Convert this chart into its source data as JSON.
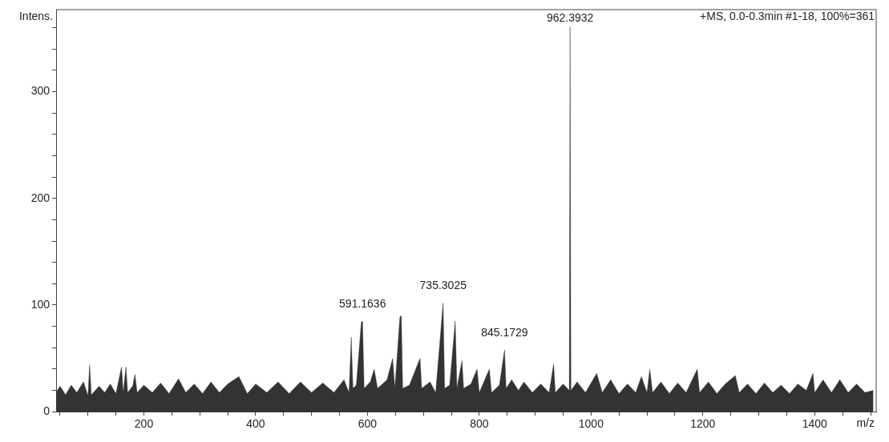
{
  "chart_data": {
    "type": "area",
    "title": "+MS, 0.0-0.3min #1-18, 100%=361",
    "xlabel": "m/z",
    "ylabel": "Intens.",
    "x": [
      43,
      50,
      60,
      70,
      80,
      92,
      100,
      103,
      106,
      120,
      130,
      140,
      150,
      160,
      163,
      168,
      171,
      180,
      184,
      188,
      200,
      215,
      230,
      245,
      262,
      275,
      290,
      305,
      320,
      335,
      350,
      370,
      385,
      400,
      420,
      440,
      460,
      480,
      500,
      520,
      540,
      558,
      567,
      571,
      574,
      580,
      589,
      591.1636,
      594,
      605,
      612,
      618,
      635,
      645,
      649,
      658,
      660.5,
      663,
      675,
      694,
      697,
      712,
      722,
      735.3025,
      738,
      747,
      757,
      760,
      769,
      772,
      785,
      796,
      800,
      818,
      822,
      836,
      845.1729,
      848,
      858,
      870,
      880,
      895,
      910,
      925,
      933,
      936,
      950,
      961,
      962.3932,
      964,
      975,
      990,
      1010,
      1020,
      1035,
      1050,
      1065,
      1080,
      1090,
      1100,
      1105,
      1110,
      1125,
      1140,
      1155,
      1170,
      1190,
      1194,
      1210,
      1225,
      1240,
      1258,
      1265,
      1280,
      1295,
      1310,
      1325,
      1340,
      1355,
      1370,
      1385,
      1397,
      1400,
      1415,
      1430,
      1445,
      1460,
      1475,
      1490,
      1505
    ],
    "series": [
      {
        "color": "#333333",
        "values": [
          18,
          24,
          16,
          25,
          18,
          28,
          15,
          44,
          16,
          24,
          18,
          26,
          17,
          42,
          18,
          42,
          18,
          24,
          35,
          18,
          25,
          18,
          27,
          17,
          31,
          18,
          26,
          17,
          28,
          18,
          26,
          33,
          17,
          26,
          18,
          28,
          17,
          28,
          18,
          27,
          18,
          30,
          18,
          70,
          22,
          25,
          84,
          85,
          22,
          28,
          40,
          22,
          30,
          50,
          22,
          89,
          90,
          22,
          25,
          50,
          22,
          28,
          18,
          102,
          22,
          25,
          85,
          22,
          48,
          22,
          26,
          40,
          18,
          40,
          18,
          25,
          58,
          22,
          30,
          20,
          28,
          18,
          26,
          18,
          45,
          18,
          26,
          20,
          361,
          20,
          28,
          18,
          36,
          18,
          30,
          17,
          26,
          18,
          33,
          18,
          40,
          18,
          28,
          17,
          27,
          18,
          40,
          18,
          28,
          17,
          26,
          34,
          18,
          26,
          17,
          27,
          18,
          25,
          17,
          26,
          20,
          36,
          18,
          30,
          18,
          30,
          18,
          26,
          18,
          20
        ]
      }
    ],
    "xlim": [
      43,
      1510
    ],
    "ylim": [
      0,
      377
    ],
    "xticks": [
      {
        "value": 50,
        "label": null
      },
      {
        "value": 100,
        "label": null
      },
      {
        "value": 150,
        "label": null
      },
      200,
      {
        "value": 250,
        "label": null
      },
      {
        "value": 300,
        "label": null
      },
      {
        "value": 350,
        "label": null
      },
      400,
      {
        "value": 450,
        "label": null
      },
      {
        "value": 500,
        "label": null
      },
      {
        "value": 550,
        "label": null
      },
      600,
      {
        "value": 650,
        "label": null
      },
      {
        "value": 700,
        "label": null
      },
      {
        "value": 750,
        "label": null
      },
      800,
      {
        "value": 850,
        "label": null
      },
      {
        "value": 900,
        "label": null
      },
      {
        "value": 950,
        "label": null
      },
      1000,
      {
        "value": 1050,
        "label": null
      },
      {
        "value": 1100,
        "label": null
      },
      {
        "value": 1150,
        "label": null
      },
      1200,
      {
        "value": 1250,
        "label": null
      },
      {
        "value": 1300,
        "label": null
      },
      {
        "value": 1350,
        "label": null
      },
      1400,
      {
        "value": 1450,
        "label": null
      },
      {
        "value": 1500,
        "label": null
      }
    ],
    "yticks": [
      0,
      {
        "value": 20,
        "label": null
      },
      {
        "value": 40,
        "label": null
      },
      {
        "value": 60,
        "label": null
      },
      {
        "value": 80,
        "label": null
      },
      100,
      {
        "value": 120,
        "label": null
      },
      {
        "value": 140,
        "label": null
      },
      {
        "value": 160,
        "label": null
      },
      {
        "value": 180,
        "label": null
      },
      200,
      {
        "value": 220,
        "label": null
      },
      {
        "value": 240,
        "label": null
      },
      {
        "value": 260,
        "label": null
      },
      {
        "value": 280,
        "label": null
      },
      300,
      {
        "value": 320,
        "label": null
      },
      {
        "value": 340,
        "label": null
      },
      {
        "value": 360,
        "label": null
      }
    ],
    "annotations": [
      {
        "text": "591.1636",
        "x": 591.1636,
        "y": 85
      },
      {
        "text": "735.3025",
        "x": 735.3025,
        "y": 102
      },
      {
        "text": "845.1729",
        "x": 845.1729,
        "y": 58
      },
      {
        "text": "962.3932",
        "x": 962.3932,
        "y": 361
      }
    ],
    "grid": false,
    "legend": false,
    "marker": "none",
    "line_style": "solid"
  }
}
